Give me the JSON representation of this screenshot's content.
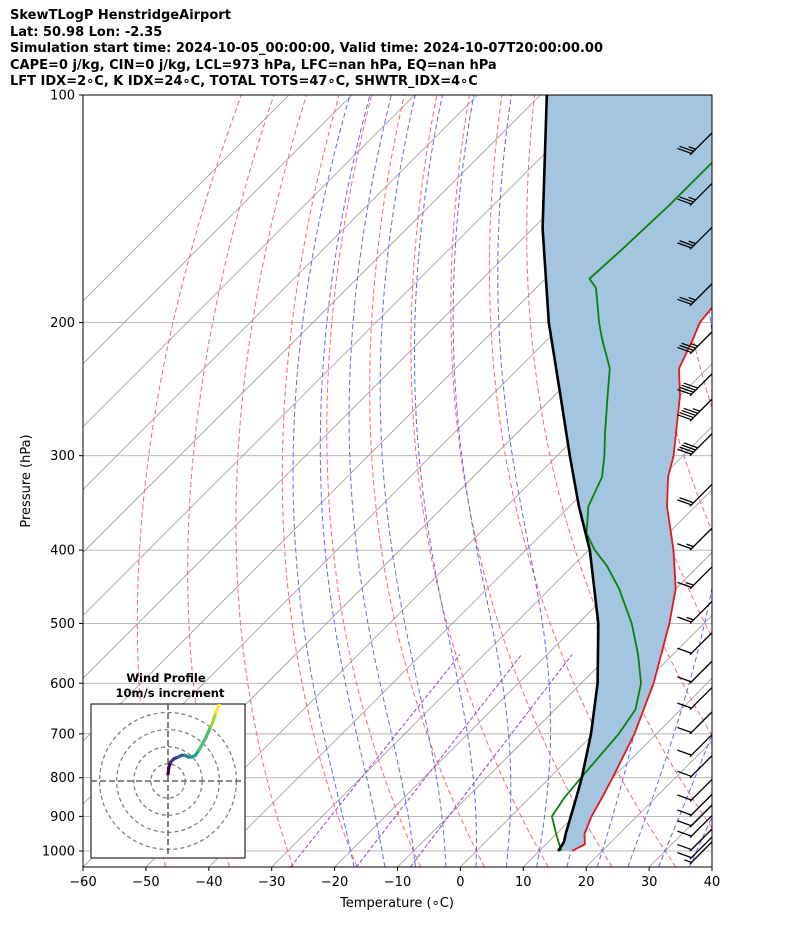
{
  "header": {
    "title": "SkewTLogP HenstridgeAirport",
    "location": "Lat: 50.98   Lon: -2.35",
    "times": "Simulation start time: 2024-10-05_00:00:00, Valid time: 2024-10-07T20:00:00.00",
    "indices1": "CAPE=0 j/kg, CIN=0 j/kg, LCL=973 hPa, LFC=nan hPa, EQ=nan hPa",
    "indices2": "LFT IDX=2∘C, K IDX=24∘C, TOTAL TOTS=47∘C, SHWTR_IDX=4∘C"
  },
  "chart_data": {
    "type": "line",
    "subtype": "skew-t log-p",
    "xlabel": "Temperature (∘C)",
    "ylabel": "Pressure (hPa)",
    "xlim": [
      -60,
      40
    ],
    "ylim": [
      1050,
      100
    ],
    "x_ticks": [
      "−60",
      "−50",
      "−40",
      "−30",
      "−20",
      "−10",
      "0",
      "10",
      "20",
      "30",
      "40"
    ],
    "y_ticks": [
      "100",
      "200",
      "300",
      "400",
      "500",
      "600",
      "700",
      "800",
      "900",
      "1000"
    ],
    "colors": {
      "temperature": "#e8161b",
      "dewpoint": "#0a7f0a",
      "parcel": "#000000",
      "shade": "#a3c5df",
      "dry_adiabat": "#f26b6b",
      "moist_adiabat": "#5b6bf5",
      "mixing_ratio": "#9940c9",
      "isotherm": "#9a9a9a",
      "isobar": "#b0b0b0"
    },
    "series": [
      {
        "name": "Temperature",
        "points": [
          [
            1000,
            15.2
          ],
          [
            980,
            16.2
          ],
          [
            950,
            14.5
          ],
          [
            900,
            12.8
          ],
          [
            850,
            11.5
          ],
          [
            800,
            10.0
          ],
          [
            700,
            6.5
          ],
          [
            600,
            1.5
          ],
          [
            500,
            -5.5
          ],
          [
            450,
            -10.0
          ],
          [
            400,
            -16.5
          ],
          [
            350,
            -24.5
          ],
          [
            320,
            -29.0
          ],
          [
            300,
            -31.5
          ],
          [
            250,
            -40.0
          ],
          [
            230,
            -44.5
          ],
          [
            210,
            -47.0
          ],
          [
            200,
            -48.5
          ],
          [
            170,
            -50.0
          ],
          [
            150,
            -50.5
          ],
          [
            140,
            -51.0
          ],
          [
            120,
            -53.0
          ],
          [
            110,
            -55.0
          ],
          [
            100,
            -57.0
          ]
        ]
      },
      {
        "name": "Dewpoint",
        "points": [
          [
            1000,
            13.5
          ],
          [
            950,
            10.0
          ],
          [
            900,
            6.5
          ],
          [
            850,
            5.5
          ],
          [
            800,
            5.0
          ],
          [
            700,
            4.0
          ],
          [
            650,
            2.8
          ],
          [
            600,
            -0.5
          ],
          [
            550,
            -5.5
          ],
          [
            500,
            -11.5
          ],
          [
            450,
            -19.0
          ],
          [
            420,
            -24.5
          ],
          [
            400,
            -29.0
          ],
          [
            380,
            -33.0
          ],
          [
            350,
            -37.0
          ],
          [
            320,
            -39.5
          ],
          [
            300,
            -42.5
          ],
          [
            280,
            -46.0
          ],
          [
            250,
            -51.5
          ],
          [
            230,
            -55.5
          ],
          [
            210,
            -61.5
          ],
          [
            200,
            -64.5
          ],
          [
            180,
            -70.5
          ],
          [
            175,
            -73.0
          ],
          [
            160,
            -72.5
          ],
          [
            140,
            -72.0
          ],
          [
            120,
            -72.0
          ],
          [
            100,
            -72.0
          ]
        ]
      },
      {
        "name": "Parcel",
        "points": [
          [
            1000,
            13.0
          ],
          [
            973,
            12.5
          ],
          [
            950,
            11.5
          ],
          [
            900,
            9.5
          ],
          [
            850,
            7.4
          ],
          [
            800,
            5.1
          ],
          [
            700,
            -0.4
          ],
          [
            600,
            -7.4
          ],
          [
            500,
            -16.8
          ],
          [
            400,
            -29.8
          ],
          [
            350,
            -38.5
          ],
          [
            300,
            -48.0
          ],
          [
            250,
            -59.0
          ],
          [
            200,
            -72.5
          ],
          [
            150,
            -88.5
          ],
          [
            100,
            -109.0
          ]
        ]
      }
    ],
    "wind_barbs": {
      "pressures": [
        1040,
        1025,
        1000,
        960,
        930,
        900,
        860,
        800,
        750,
        700,
        650,
        600,
        550,
        500,
        450,
        400,
        350,
        300,
        270,
        250,
        220,
        190,
        160,
        140,
        120
      ],
      "speeds_kt": [
        5,
        10,
        10,
        10,
        10,
        10,
        10,
        10,
        10,
        10,
        10,
        10,
        10,
        15,
        15,
        15,
        20,
        40,
        45,
        40,
        35,
        25,
        25,
        25,
        25
      ]
    },
    "hodograph": {
      "title": "Wind Profile",
      "subtitle": "10m/s increment",
      "range": 45,
      "rings": [
        10,
        20,
        30,
        40
      ],
      "points": [
        [
          0,
          4
        ],
        [
          0.5,
          8
        ],
        [
          1.5,
          11
        ],
        [
          3.5,
          13
        ],
        [
          6,
          14
        ],
        [
          8,
          15
        ],
        [
          10,
          15
        ],
        [
          12,
          14
        ],
        [
          14,
          14
        ],
        [
          16,
          15
        ],
        [
          18,
          18
        ],
        [
          22,
          25
        ],
        [
          25,
          32
        ],
        [
          26,
          34
        ],
        [
          28,
          40
        ],
        [
          30,
          45
        ]
      ]
    }
  }
}
